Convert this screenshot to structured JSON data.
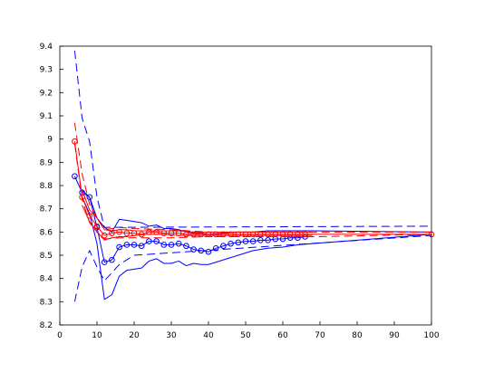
{
  "chart_data": {
    "type": "line",
    "xlim": [
      0,
      100
    ],
    "ylim": [
      8.2,
      9.4
    ],
    "x_ticks": [
      0,
      10,
      20,
      30,
      40,
      50,
      60,
      70,
      80,
      90,
      100
    ],
    "y_ticks": [
      8.2,
      8.3,
      8.4,
      8.5,
      8.6,
      8.7,
      8.8,
      8.9,
      9.0,
      9.1,
      9.2,
      9.3,
      9.4
    ],
    "x_tick_labels": [
      "0",
      "10",
      "20",
      "30",
      "40",
      "50",
      "60",
      "70",
      "80",
      "90",
      "100"
    ],
    "y_tick_labels": [
      "8.2",
      "8.3",
      "8.4",
      "8.5",
      "8.6",
      "8.7",
      "8.8",
      "8.9",
      "9",
      "9.1",
      "9.2",
      "9.3",
      "9.4"
    ],
    "grid": false,
    "series": [
      {
        "color": "#0000ff",
        "style": "dashed",
        "marker": "none",
        "x": [
          4,
          6,
          8,
          10,
          12,
          100
        ],
        "y": [
          9.38,
          9.09,
          8.99,
          8.75,
          8.62,
          8.625
        ]
      },
      {
        "color": "#0000ff",
        "style": "dashed",
        "marker": "none",
        "x": [
          4,
          6,
          8,
          10,
          12,
          16,
          20,
          100
        ],
        "y": [
          8.3,
          8.45,
          8.52,
          8.45,
          8.39,
          8.46,
          8.5,
          8.585
        ]
      },
      {
        "color": "#0000ff",
        "style": "solid",
        "marker": "none",
        "x": [
          6,
          8,
          10,
          12,
          14,
          16,
          18,
          20,
          22,
          24,
          26,
          28,
          30,
          32,
          34,
          36,
          38,
          40,
          44,
          48,
          52,
          56,
          60,
          64,
          68,
          100
        ],
        "y": [
          8.78,
          8.75,
          8.66,
          8.62,
          8.6,
          8.655,
          8.65,
          8.645,
          8.64,
          8.625,
          8.63,
          8.615,
          8.615,
          8.61,
          8.6,
          8.595,
          8.595,
          8.59,
          8.595,
          8.6,
          8.6,
          8.605,
          8.605,
          8.605,
          8.605,
          8.6
        ]
      },
      {
        "color": "#0000ff",
        "style": "solid",
        "marker": "none",
        "x": [
          6,
          8,
          10,
          12,
          14,
          16,
          18,
          20,
          22,
          24,
          26,
          28,
          30,
          32,
          34,
          36,
          38,
          40,
          44,
          48,
          52,
          56,
          60,
          64,
          68,
          100
        ],
        "y": [
          8.75,
          8.68,
          8.55,
          8.31,
          8.33,
          8.41,
          8.435,
          8.44,
          8.445,
          8.475,
          8.485,
          8.465,
          8.465,
          8.475,
          8.455,
          8.465,
          8.46,
          8.46,
          8.48,
          8.5,
          8.52,
          8.53,
          8.535,
          8.545,
          8.55,
          8.59
        ]
      },
      {
        "color": "#0000ff",
        "style": "solid",
        "marker": "circle",
        "x": [
          4,
          6,
          8,
          10,
          12,
          14,
          16,
          18,
          20,
          22,
          24,
          26,
          28,
          30,
          32,
          34,
          36,
          38,
          40,
          42,
          44,
          46,
          48,
          50,
          52,
          54,
          56,
          58,
          60,
          62,
          64,
          66
        ],
        "y": [
          8.84,
          8.77,
          8.75,
          8.62,
          8.47,
          8.48,
          8.535,
          8.545,
          8.545,
          8.54,
          8.56,
          8.56,
          8.545,
          8.545,
          8.55,
          8.54,
          8.525,
          8.52,
          8.515,
          8.53,
          8.54,
          8.55,
          8.555,
          8.56,
          8.56,
          8.565,
          8.565,
          8.57,
          8.57,
          8.575,
          8.575,
          8.58
        ]
      },
      {
        "color": "#ff0000",
        "style": "dashed",
        "marker": "none",
        "x": [
          4,
          6,
          8,
          10,
          12,
          16,
          20,
          30,
          40,
          50,
          60,
          70,
          100
        ],
        "y": [
          9.07,
          8.85,
          8.72,
          8.66,
          8.61,
          8.62,
          8.615,
          8.61,
          8.6,
          8.6,
          8.6,
          8.6,
          8.6
        ]
      },
      {
        "color": "#ff0000",
        "style": "dashed",
        "marker": "none",
        "x": [
          4,
          6,
          8,
          10,
          12,
          16,
          20,
          30,
          40,
          50,
          60,
          70,
          100
        ],
        "y": [
          8.98,
          8.74,
          8.64,
          8.6,
          8.57,
          8.575,
          8.575,
          8.575,
          8.58,
          8.58,
          8.58,
          8.58,
          8.59
        ]
      },
      {
        "color": "#ff0000",
        "style": "solid",
        "marker": "none",
        "x": [
          6,
          8,
          10,
          12,
          14,
          16,
          18,
          20,
          24,
          28,
          32,
          36,
          40,
          44,
          48,
          52,
          56,
          60,
          64,
          68
        ],
        "y": [
          8.78,
          8.695,
          8.66,
          8.61,
          8.605,
          8.61,
          8.61,
          8.605,
          8.605,
          8.605,
          8.605,
          8.6,
          8.6,
          8.6,
          8.6,
          8.6,
          8.6,
          8.6,
          8.6,
          8.6
        ]
      },
      {
        "color": "#ff0000",
        "style": "solid",
        "marker": "none",
        "x": [
          6,
          8,
          10,
          12,
          14,
          16,
          18,
          20,
          24,
          28,
          32,
          36,
          40,
          44,
          48,
          52,
          56,
          60,
          64,
          68
        ],
        "y": [
          8.715,
          8.645,
          8.6,
          8.565,
          8.575,
          8.58,
          8.58,
          8.585,
          8.59,
          8.59,
          8.585,
          8.585,
          8.585,
          8.585,
          8.585,
          8.585,
          8.585,
          8.585,
          8.585,
          8.585
        ]
      },
      {
        "color": "#ff0000",
        "style": "solid",
        "marker": "circle",
        "x": [
          4,
          6,
          8,
          10,
          12,
          14,
          16,
          18,
          20,
          22,
          24,
          26,
          28,
          30,
          32,
          34,
          36,
          38,
          40,
          42,
          44,
          46,
          48,
          50,
          52,
          54,
          56,
          58,
          60,
          62,
          64,
          66,
          100
        ],
        "y": [
          8.99,
          8.75,
          8.67,
          8.625,
          8.585,
          8.595,
          8.6,
          8.595,
          8.595,
          8.59,
          8.6,
          8.6,
          8.595,
          8.595,
          8.595,
          8.59,
          8.59,
          8.59,
          8.59,
          8.59,
          8.59,
          8.59,
          8.59,
          8.59,
          8.59,
          8.59,
          8.59,
          8.59,
          8.59,
          8.59,
          8.59,
          8.59,
          8.59
        ]
      }
    ]
  }
}
